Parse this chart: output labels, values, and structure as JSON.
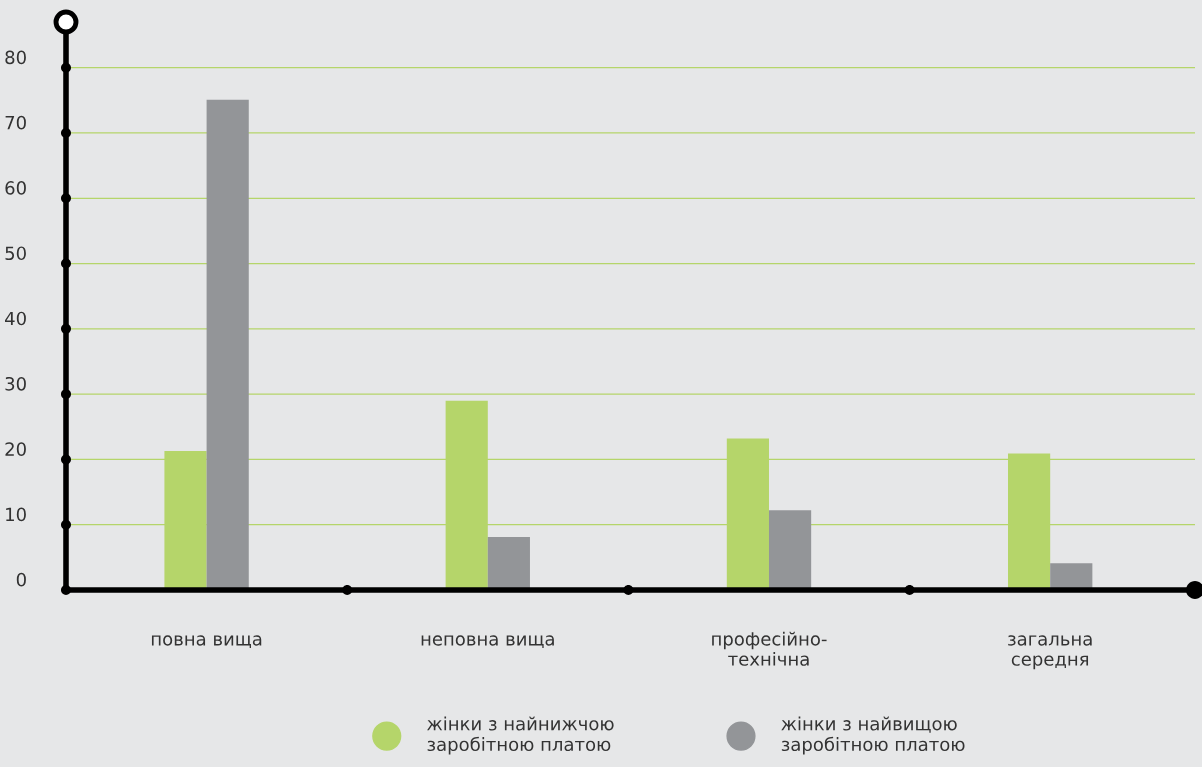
{
  "chart_data": {
    "type": "bar",
    "categories": [
      "повна вища",
      "неповна вища",
      "професійно-\nтехнічна",
      "загальна\nсередня"
    ],
    "series": [
      {
        "name": "жінки з найнижчою\nзаробітною платою",
        "color": "#b5d56a",
        "values": [
          21.3,
          29.0,
          23.2,
          20.9
        ]
      },
      {
        "name": "жінки з найвищою\nзаробітною платою",
        "color": "#939598",
        "values": [
          75.1,
          8.1,
          12.2,
          4.1
        ]
      }
    ],
    "ylim": [
      0,
      87
    ],
    "yticks": [
      0,
      10,
      20,
      30,
      40,
      50,
      60,
      70,
      80
    ],
    "grid": "y",
    "legend": "bottom"
  }
}
